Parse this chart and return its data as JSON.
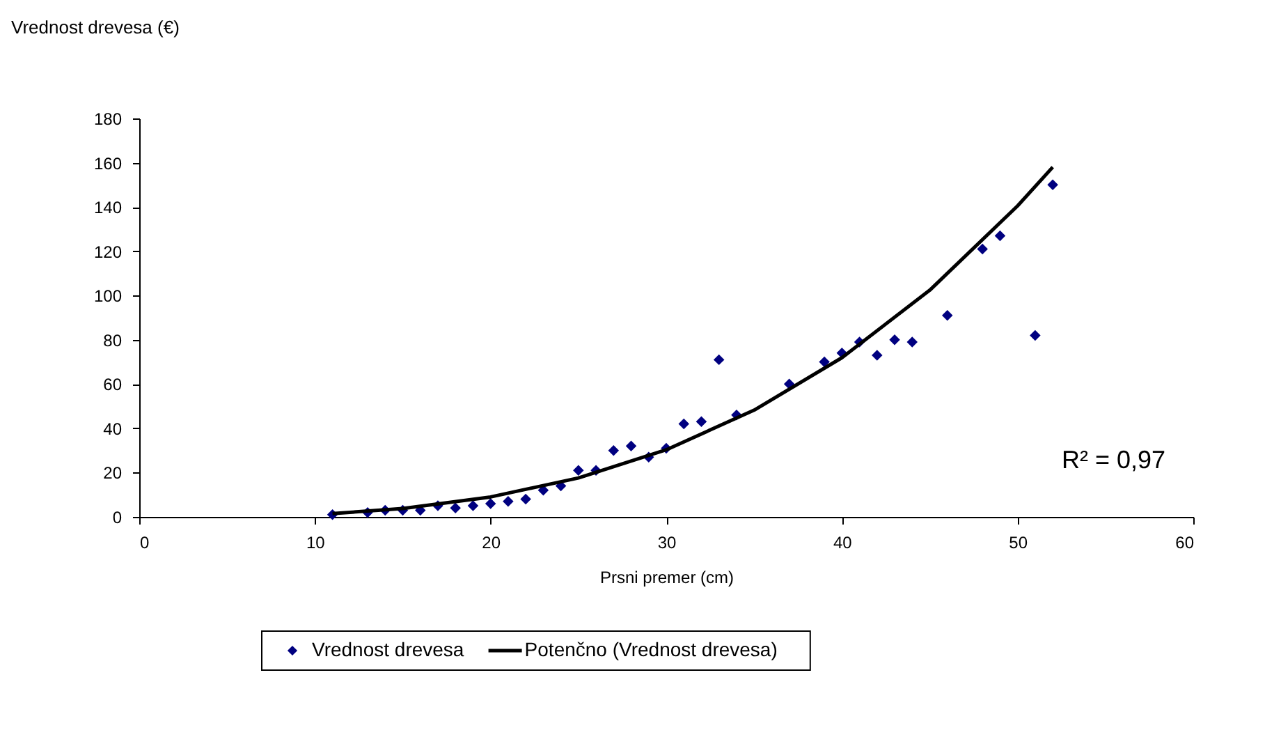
{
  "chart_data": {
    "type": "scatter",
    "xlabel": "Prsni premer (cm)",
    "ylabel": "Vrednost drevesa (€)",
    "xlim": [
      0,
      60
    ],
    "xticks": [
      0,
      10,
      20,
      30,
      40,
      50,
      60
    ],
    "ylim": [
      0,
      180
    ],
    "yticks": [
      0,
      20,
      40,
      60,
      80,
      100,
      120,
      140,
      160,
      180
    ],
    "grid": false,
    "legend": "bottom",
    "annotations": [
      "R² = 0,97"
    ],
    "series": [
      {
        "name": "Vrednost drevesa",
        "color": "#000080",
        "marker": "diamond",
        "x": [
          11,
          13,
          14,
          15,
          16,
          17,
          18,
          19,
          20,
          21,
          22,
          23,
          24,
          25,
          26,
          27,
          28,
          29,
          30,
          31,
          32,
          33,
          34,
          37,
          39,
          40,
          41,
          42,
          43,
          44,
          46,
          48,
          49,
          51,
          52
        ],
        "values": [
          1,
          2,
          3,
          3,
          3,
          5,
          4,
          5,
          6,
          7,
          8,
          12,
          14,
          21,
          21,
          30,
          32,
          27,
          31,
          42,
          43,
          71,
          46,
          60,
          70,
          74,
          79,
          73,
          80,
          79,
          91,
          121,
          127,
          82,
          150
        ]
      },
      {
        "name": "Potenčno (Vrednost drevesa)",
        "color": "#000000",
        "type": "line",
        "line_style": "solid",
        "x": [
          11,
          15,
          20,
          25,
          30,
          35,
          40,
          45,
          50,
          52
        ],
        "values": [
          1.5,
          3.8,
          9.0,
          17.6,
          30.3,
          48.2,
          71.9,
          102.4,
          140.5,
          158
        ]
      }
    ]
  }
}
